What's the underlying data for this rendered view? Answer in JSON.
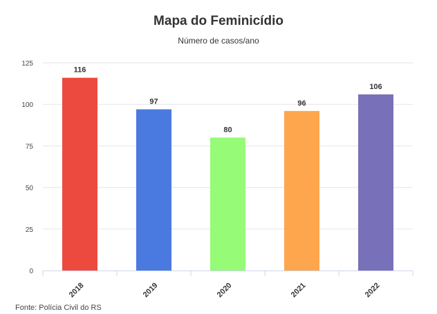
{
  "chart_data": {
    "type": "bar",
    "title": "Mapa do Feminicídio",
    "subtitle": "Número de casos/ano",
    "categories": [
      "2018",
      "2019",
      "2020",
      "2021",
      "2022"
    ],
    "values": [
      116,
      97,
      80,
      96,
      106
    ],
    "colors": [
      "#ed4a3f",
      "#4a79e0",
      "#96fb77",
      "#fda64d",
      "#7870b8"
    ],
    "ylim": [
      0,
      125
    ],
    "yticks": [
      0,
      25,
      50,
      75,
      100,
      125
    ],
    "xlabel": "",
    "ylabel": "",
    "grid": true,
    "legend": "none"
  },
  "source_text": "Fonte: Polícia Civil do RS"
}
